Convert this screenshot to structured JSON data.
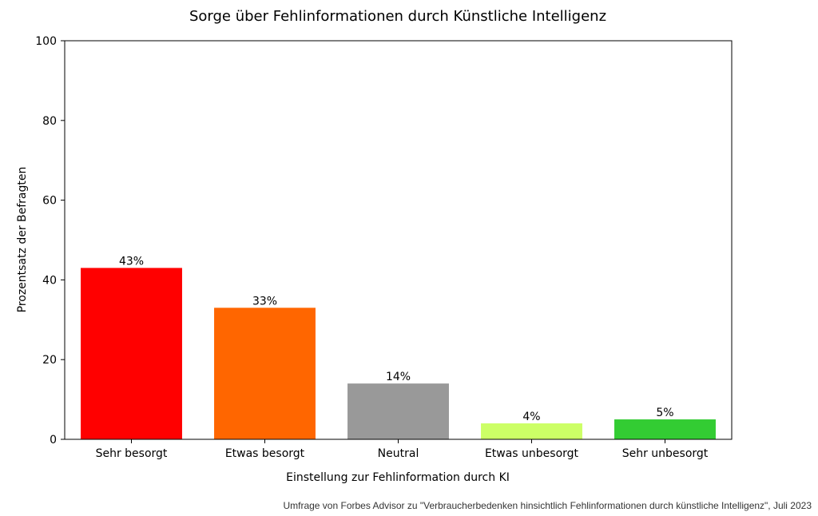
{
  "chart_data": {
    "type": "bar",
    "title": "Sorge über Fehlinformationen durch Künstliche Intelligenz",
    "xlabel": "Einstellung zur Fehlinformation durch KI",
    "ylabel": "Prozentsatz der Befragten",
    "categories": [
      "Sehr besorgt",
      "Etwas besorgt",
      "Neutral",
      "Etwas unbesorgt",
      "Sehr unbesorgt"
    ],
    "values": [
      43,
      33,
      14,
      4,
      5
    ],
    "value_labels": [
      "43%",
      "33%",
      "14%",
      "4%",
      "5%"
    ],
    "colors": [
      "#ff0000",
      "#ff6600",
      "#999999",
      "#ccff66",
      "#33cc33"
    ],
    "ylim": [
      0,
      100
    ],
    "yticks": [
      0,
      20,
      40,
      60,
      80,
      100
    ],
    "grid": false,
    "legend": "none"
  },
  "source_note": "Umfrage von Forbes Advisor zu \"Verbraucherbedenken hinsichtlich Fehlinformationen durch künstliche Intelligenz\", Juli 2023"
}
